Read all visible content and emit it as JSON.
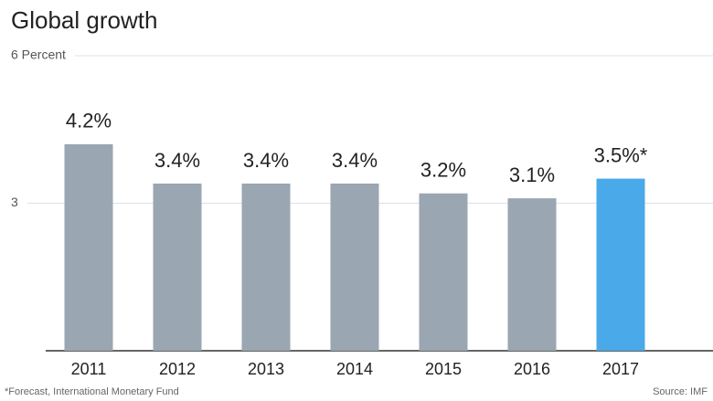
{
  "chart_data": {
    "type": "bar",
    "title": "Global growth",
    "categories": [
      "2011",
      "2012",
      "2013",
      "2014",
      "2015",
      "2016",
      "2017"
    ],
    "values": [
      4.2,
      3.4,
      3.4,
      3.4,
      3.2,
      3.1,
      3.5
    ],
    "value_labels": [
      "4.2%",
      "3.4%",
      "3.4%",
      "3.4%",
      "3.2%",
      "3.1%",
      "3.5%*"
    ],
    "colors": [
      "#9aa6b1",
      "#9aa6b1",
      "#9aa6b1",
      "#9aa6b1",
      "#9aa6b1",
      "#9aa6b1",
      "#4aa9e9"
    ],
    "ylim": [
      0,
      6
    ],
    "yticks": [
      3,
      {
        "value": 6,
        "label": "6 Percent"
      }
    ],
    "grid": true,
    "footnote": "*Forecast, International Monetary Fund",
    "source": "Source: IMF"
  }
}
